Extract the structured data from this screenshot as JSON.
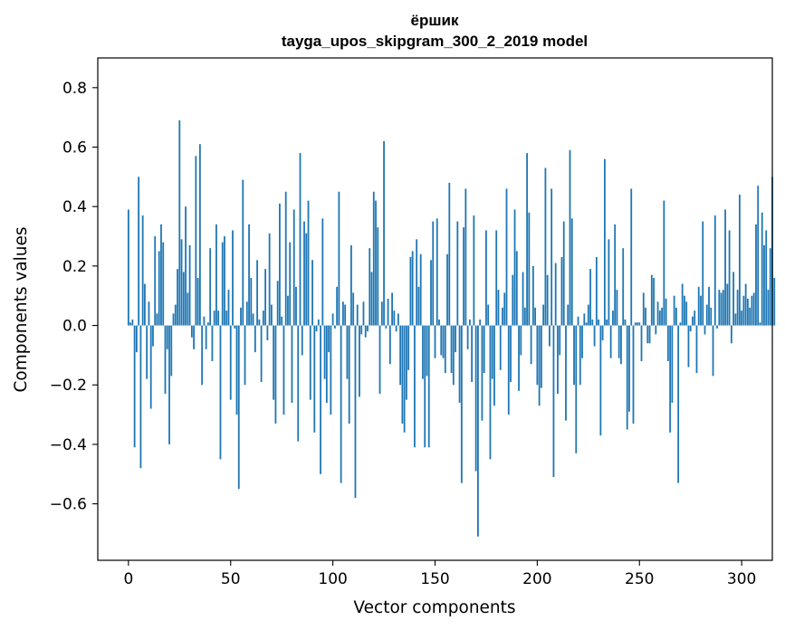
{
  "chart_data": {
    "type": "bar",
    "title": "ёршик",
    "subtitle": "tayga_upos_skipgram_300_2_2019 model",
    "xlabel": "Vector components",
    "ylabel": "Components values",
    "xlim": [
      -15,
      315
    ],
    "ylim": [
      -0.79,
      0.9
    ],
    "xticks": [
      0,
      50,
      100,
      150,
      200,
      250,
      300
    ],
    "xtick_labels": [
      "0",
      "50",
      "100",
      "150",
      "200",
      "250",
      "300"
    ],
    "yticks": [
      -0.6,
      -0.4,
      -0.2,
      0.0,
      0.2,
      0.4,
      0.6,
      0.8
    ],
    "ytick_labels": [
      "−0.6",
      "−0.4",
      "−0.2",
      "0.0",
      "0.2",
      "0.4",
      "0.6",
      "0.8"
    ],
    "bar_color": "#1f77b4",
    "grid": false,
    "values": [
      0.39,
      0.01,
      0.02,
      -0.41,
      -0.09,
      0.5,
      -0.48,
      0.37,
      0.14,
      -0.18,
      0.08,
      -0.28,
      -0.07,
      0.3,
      0.04,
      0.25,
      0.34,
      0.28,
      -0.23,
      -0.08,
      -0.4,
      -0.17,
      0.04,
      0.07,
      0.19,
      0.69,
      0.29,
      0.18,
      0.4,
      0.11,
      0.27,
      -0.04,
      -0.08,
      0.57,
      0.16,
      0.61,
      -0.2,
      0.03,
      -0.08,
      0.01,
      0.26,
      -0.12,
      0.05,
      0.34,
      0.05,
      -0.45,
      0.28,
      0.3,
      0.05,
      0.12,
      -0.25,
      0.32,
      -0.01,
      -0.3,
      -0.55,
      0.06,
      0.49,
      -0.2,
      0.08,
      0.34,
      0.16,
      0.04,
      -0.09,
      0.22,
      0.02,
      -0.19,
      0.05,
      0.19,
      -0.05,
      0.31,
      0.07,
      -0.25,
      -0.33,
      0.15,
      0.41,
      0.03,
      -0.3,
      0.45,
      0.1,
      0.28,
      -0.26,
      0.39,
      0.13,
      -0.39,
      0.58,
      -0.1,
      0.35,
      0.31,
      0.42,
      -0.25,
      0.22,
      -0.36,
      -0.02,
      0.02,
      -0.5,
      0.36,
      -0.18,
      -0.26,
      -0.09,
      -0.3,
      0.04,
      -0.01,
      0.13,
      0.45,
      -0.53,
      0.08,
      0.07,
      -0.18,
      -0.33,
      0.27,
      0.11,
      -0.58,
      0.07,
      -0.24,
      -0.03,
      0.08,
      -0.04,
      -0.02,
      0.26,
      0.18,
      0.45,
      0.42,
      0.33,
      -0.23,
      0.08,
      0.62,
      -0.01,
      0.09,
      -0.13,
      0.11,
      0.05,
      -0.02,
      0.04,
      -0.2,
      -0.33,
      -0.36,
      -0.25,
      -0.15,
      0.23,
      0.25,
      -0.41,
      0.29,
      0.13,
      0.24,
      -0.18,
      -0.41,
      -0.17,
      -0.41,
      0.22,
      0.35,
      -0.11,
      0.36,
      0.02,
      -0.1,
      -0.11,
      -0.16,
      0.24,
      0.48,
      -0.16,
      -0.2,
      -0.09,
      0.35,
      -0.26,
      -0.53,
      0.33,
      0.46,
      -0.08,
      0.02,
      -0.19,
      0.37,
      -0.49,
      -0.71,
      0.02,
      -0.32,
      -0.16,
      0.32,
      0.07,
      -0.45,
      -0.18,
      -0.27,
      0.32,
      0.12,
      -0.15,
      0.06,
      0.11,
      0.46,
      -0.3,
      -0.19,
      0.17,
      0.39,
      0.25,
      -0.22,
      -0.1,
      0.18,
      0.06,
      0.58,
      0.38,
      -0.13,
      0.2,
      0.06,
      -0.2,
      -0.27,
      -0.21,
      0.07,
      0.53,
      0.17,
      -0.07,
      0.46,
      -0.51,
      0.21,
      -0.23,
      -0.1,
      0.23,
      0.35,
      -0.32,
      0.07,
      0.59,
      0.36,
      -0.2,
      -0.43,
      0.03,
      -0.2,
      -0.11,
      0.04,
      0.01,
      0.07,
      0.19,
      0.02,
      -0.07,
      0.23,
      0.02,
      -0.37,
      -0.05,
      0.56,
      0.02,
      0.29,
      -0.11,
      0.05,
      0.34,
      0.12,
      -0.11,
      -0.13,
      0.26,
      0.02,
      -0.35,
      -0.29,
      0.46,
      -0.33,
      0.01,
      0.01,
      0.01,
      -0.12,
      0.11,
      0.06,
      -0.06,
      -0.06,
      0.17,
      0.16,
      -0.03,
      0.08,
      0.05,
      0.06,
      0.42,
      0.09,
      -0.12,
      -0.36,
      -0.26,
      0.1,
      0.06,
      -0.53,
      0.01,
      0.14,
      0.1,
      0.08,
      -0.14,
      -0.02,
      0.03,
      0.05,
      -0.16,
      0.13,
      0.1,
      0.35,
      -0.03,
      0.07,
      0.13,
      0.06,
      -0.17,
      0.37,
      -0.01,
      0.12,
      0.11,
      0.12,
      0.39,
      0.14,
      0.32,
      -0.06,
      0.18,
      0.04,
      0.12,
      0.44,
      0.05,
      0.1,
      0.14,
      0.09,
      0.06,
      0.1,
      0.11,
      0.34,
      0.47,
      0.01,
      0.38,
      0.27,
      0.32,
      0.12,
      0.26,
      0.5,
      0.16
    ]
  }
}
